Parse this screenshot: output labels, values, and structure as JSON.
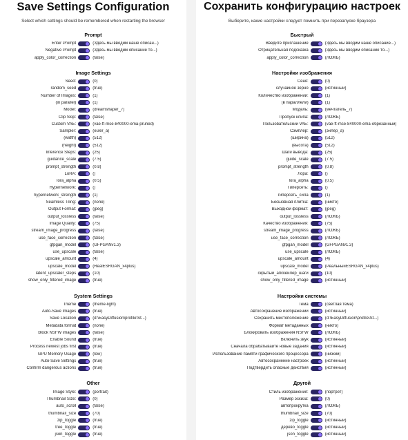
{
  "colors": {
    "toggle_track": "#2a2563",
    "toggle_knob": "#8e72ff"
  },
  "panels": [
    {
      "id": "en",
      "title": "Save Settings Configuration",
      "subtitle": "Select which settings should be remembered when restarting the browser",
      "sections": [
        {
          "title": "Prompt",
          "rows": [
            [
              "Enter Prompt",
              "(Здесь мы вводим наше описан...)"
            ],
            [
              "Negative Prompt",
              "(Здесь мы вводим описание то...)"
            ],
            [
              "apply_color_correction",
              "(false)"
            ]
          ]
        },
        {
          "title": "Image Settings",
          "rows": [
            [
              "Seed:",
              "(0)"
            ],
            [
              "random_seed",
              "(true)"
            ],
            [
              "Number of Images:",
              "(1)"
            ],
            [
              "(in parallel)",
              "(1)"
            ],
            [
              "Model:",
              "(dreamshaper_7)"
            ],
            [
              "Clip Skip:",
              "(false)"
            ],
            [
              "Custom VAE:",
              "(vae-ft-mse-840000-ema-pruned)"
            ],
            [
              "Sampler:",
              "(euler_a)"
            ],
            [
              "(width)",
              "(512)"
            ],
            [
              "(height)",
              "(512)"
            ],
            [
              "Inference Steps:",
              "(25)"
            ],
            [
              "guidance_scale",
              "(7.5)"
            ],
            [
              "prompt_strength",
              "(0.8)"
            ],
            [
              "LoRA:",
              "()"
            ],
            [
              "lora_alpha",
              "(0.5)"
            ],
            [
              "Hypernetwork:",
              "()"
            ],
            [
              "hypernetwork_strength",
              "(1)"
            ],
            [
              "Seamless Tiling:",
              "(none)"
            ],
            [
              "Output Format:",
              "(jpeg)"
            ],
            [
              "output_lossless",
              "(false)"
            ],
            [
              "Image Quality:",
              "(75)"
            ],
            [
              "stream_image_progress",
              "(false)"
            ],
            [
              "use_face_correction",
              "(false)"
            ],
            [
              "gfpgan_model",
              "(GFPGANv1.3)"
            ],
            [
              "use_upscale",
              "(false)"
            ],
            [
              "upscale_amount",
              "(4)"
            ],
            [
              "upscale_model",
              "(RealESRGAN_x4plus)"
            ],
            [
              "latent_upscaler_steps",
              "(10)"
            ],
            [
              "show_only_filtered_image",
              "(true)"
            ]
          ]
        },
        {
          "title": "System Settings",
          "rows": [
            [
              "Theme",
              "(theme-light)"
            ],
            [
              "Auto-Save Images",
              "(true)"
            ],
            [
              "Save Location",
              "(d:\\EasyDiffusion\\profile\\St...)"
            ],
            [
              "Metadata format",
              "(none)"
            ],
            [
              "Block NSFW images",
              "(false)"
            ],
            [
              "Enable Sound",
              "(true)"
            ],
            [
              "Process newest jobs first",
              "(true)"
            ],
            [
              "GPU Memory Usage",
              "(low)"
            ],
            [
              "Auto-Save Settings",
              "(true)"
            ],
            [
              "Confirm dangerous actions",
              "(true)"
            ]
          ]
        },
        {
          "title": "Other",
          "rows": [
            [
              "Image Style:",
              "(portrait)"
            ],
            [
              "Thumbnail Size:",
              "(0)"
            ],
            [
              "auto_scroll",
              "(false)"
            ],
            [
              "thumbnail_size",
              "(70)"
            ],
            [
              "zip_toggle",
              "(true)"
            ],
            [
              "tree_toggle",
              "(true)"
            ],
            [
              "json_toggle",
              "(true)"
            ]
          ]
        }
      ]
    },
    {
      "id": "ru",
      "title": "Сохранить конфигурацию настроек",
      "subtitle": "Выберите, какие настройки следует помнить при перезапуске браузера",
      "sections": [
        {
          "title": "Быстрый",
          "rows": [
            [
              "Введите приглашение",
              "(Здесь мы вводим наше описание...)"
            ],
            [
              "Отрицательная подсказка",
              "(Здесь мы вводим описание то...)"
            ],
            [
              "apply_color_correction",
              "(ЛОЖЬ)"
            ]
          ]
        },
        {
          "title": "Настройки изображения",
          "rows": [
            [
              "Сеня:",
              "(0)"
            ],
            [
              "случайное зерно",
              "(истинный)"
            ],
            [
              "Количество изображений:",
              "(1)"
            ],
            [
              "(в параллели)",
              "(1)"
            ],
            [
              "Модель:",
              "(мечтатель_7)"
            ],
            [
              "Пропуск клипа:",
              "(ЛОЖЬ)"
            ],
            [
              "Пользовательский VAE:",
              "(vae-ft-mse-840000-ema-обрезанный)"
            ],
            [
              "Сэмплер:",
              "(эйлер_а)"
            ],
            [
              "(ширина)",
              "(512)"
            ],
            [
              "(высота)",
              "(512)"
            ],
            [
              "Шаги вывода:",
              "(25)"
            ],
            [
              "guide_scale",
              "(7.5)"
            ],
            [
              "prompt_strength",
              "(0,8)"
            ],
            [
              "Лора:",
              "()"
            ],
            [
              "lora_alpha",
              "(0,5)"
            ],
            [
              "Гиперсеть:",
              "()"
            ],
            [
              "гиперсеть_сила",
              "(1)"
            ],
            [
              "Бесшовная плитка:",
              "(никто)"
            ],
            [
              "Выходной формат:",
              "(jpeg)"
            ],
            [
              "output_lossless",
              "(ЛОЖЬ)"
            ],
            [
              "Качество изображения:",
              "(75)"
            ],
            [
              "stream_image_progress",
              "(ЛОЖЬ)"
            ],
            [
              "use_face_correction",
              "(ЛОЖЬ)"
            ],
            [
              "gfpgan_model",
              "(GFPGANv1.3)"
            ],
            [
              "use_upscale",
              "(ЛОЖЬ)"
            ],
            [
              "upscale_amount",
              "(4)"
            ],
            [
              "upscale_model",
              "(РеальныйESRGAN_x4plus)"
            ],
            [
              "скрытый_апскейлер_шаги",
              "(10)"
            ],
            [
              "show_only_filtered_image",
              "(истинный)"
            ]
          ]
        },
        {
          "title": "Настройки системы",
          "rows": [
            [
              "Тема",
              "(светлая тема)"
            ],
            [
              "Автосохранение изображений",
              "(истинный)"
            ],
            [
              "Сохранить местоположение",
              "(d:\\EasyDiffusion\\profile\\St...)"
            ],
            [
              "Формат метаданных",
              "(никто)"
            ],
            [
              "Блокировать изображения NSFW",
              "(ЛОЖЬ)"
            ],
            [
              "Включить звук",
              "(истинный)"
            ],
            [
              "Сначала обрабатывайте новые задания",
              "(истинный)"
            ],
            [
              "Использование памяти графического процессора",
              "(низкий)"
            ],
            [
              "Автосохранение настроек",
              "(истинный)"
            ],
            [
              "Подтвердить опасные действия",
              "(истинный)"
            ]
          ]
        },
        {
          "title": "Другой",
          "rows": [
            [
              "Стиль изображения:",
              "(портрет)"
            ],
            [
              "Размер эскиза:",
              "(0)"
            ],
            [
              "автопрокрутка",
              "(ЛОЖЬ)"
            ],
            [
              "thumbnail_size",
              "(70)"
            ],
            [
              "zip_toggle",
              "(истинный)"
            ],
            [
              "дерево_toggle",
              "(истинный)"
            ],
            [
              "json_toggle",
              "(истинный)"
            ]
          ]
        }
      ]
    }
  ]
}
